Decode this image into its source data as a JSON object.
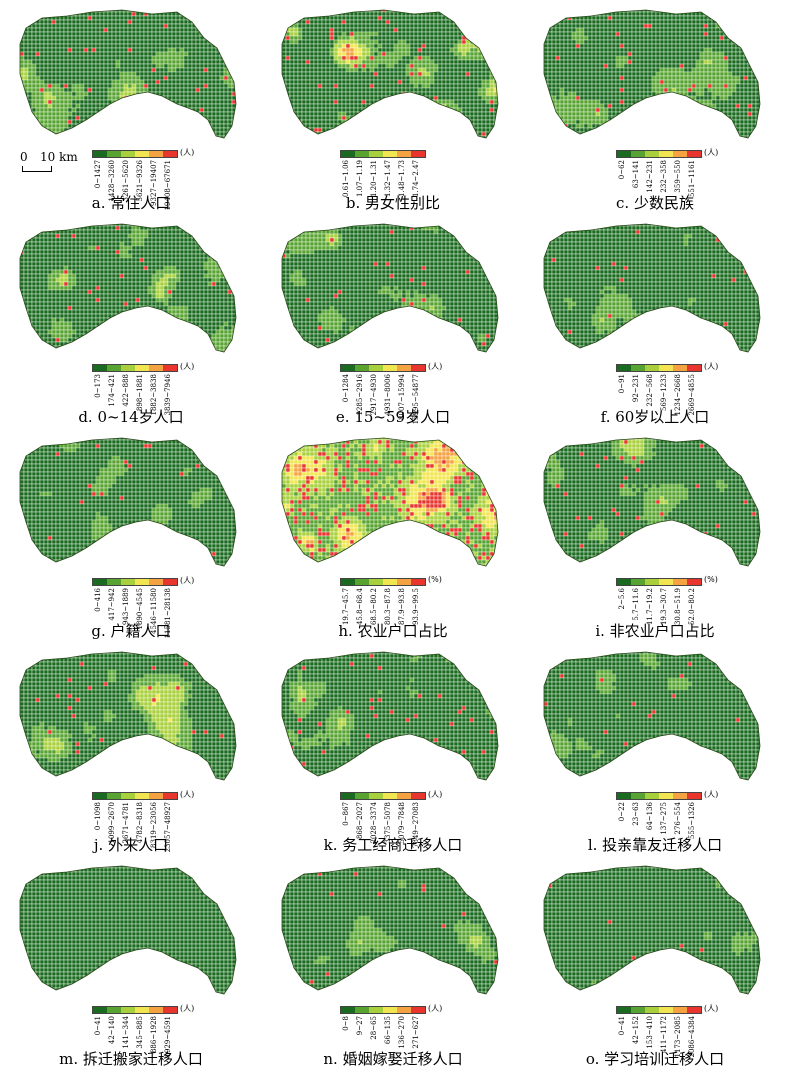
{
  "colors": [
    "#1a6b1f",
    "#58a331",
    "#a8d03c",
    "#f2e552",
    "#f5a242",
    "#e8362f"
  ],
  "scalebar": {
    "zero": "0",
    "distance": "10 km"
  },
  "panels": [
    {
      "caption": "a. 常住人口",
      "unit": "(人)",
      "classes": [
        "0~1427",
        "1428~3260",
        "3261~5620",
        "5621~9326",
        "9327~19407",
        "19408~67671"
      ],
      "level": 0.42,
      "hot": 0.08
    },
    {
      "caption": "b. 男女性别比",
      "unit": "",
      "classes": [
        "0.61~1.06",
        "1.07~1.19",
        "1.20~1.31",
        "1.32~1.47",
        "1.48~1.73",
        "1.74~2.47"
      ],
      "level": 0.62,
      "hot": 0.12
    },
    {
      "caption": "c. 少数民族",
      "unit": "(人)",
      "classes": [
        "0~62",
        "63~141",
        "142~231",
        "232~358",
        "359~550",
        "551~1161"
      ],
      "level": 0.45,
      "hot": 0.1
    },
    {
      "caption": "d. 0~14岁人口",
      "unit": "(人)",
      "classes": [
        "0~173",
        "174~421",
        "422~888",
        "898~1881",
        "1882~3838",
        "3839~7946"
      ],
      "level": 0.4,
      "hot": 0.06
    },
    {
      "caption": "e. 15~59岁人口",
      "unit": "(人)",
      "classes": [
        "0~1284",
        "1285~2916",
        "2917~4930",
        "4931~8006",
        "8007~15994",
        "15995~54877"
      ],
      "level": 0.42,
      "hot": 0.08
    },
    {
      "caption": "f. 60岁以上人口",
      "unit": "(人)",
      "classes": [
        "0~91",
        "92~231",
        "232~568",
        "569~1233",
        "1234~2668",
        "2669~4855"
      ],
      "level": 0.3,
      "hot": 0.03
    },
    {
      "caption": "g. 户籍人口",
      "unit": "(人)",
      "classes": [
        "0~416",
        "417~942",
        "943~1889",
        "1890~4545",
        "4546~11580",
        "11581~28138"
      ],
      "level": 0.33,
      "hot": 0.04
    },
    {
      "caption": "h. 农业户口占比",
      "unit": "(%)",
      "classes": [
        "19.7~45.7",
        "45.8~68.4",
        "68.5~80.2",
        "80.3~87.8",
        "87.9~93.8",
        "93.9~99.5"
      ],
      "level": 0.88,
      "hot": 0.55
    },
    {
      "caption": "i. 非农业户口占比",
      "unit": "(%)",
      "classes": [
        "2~5.6",
        "5.7~11.6",
        "11.7~19.2",
        "19.3~30.7",
        "30.8~51.9",
        "52.0~80.2"
      ],
      "level": 0.36,
      "hot": 0.08
    },
    {
      "caption": "j. 外来人口",
      "unit": "(人)",
      "classes": [
        "0~1098",
        "1099~2670",
        "2671~4781",
        "4782~8318",
        "8319~23056",
        "23057~48927"
      ],
      "level": 0.44,
      "hot": 0.08
    },
    {
      "caption": "k. 务工经商迁移人口",
      "unit": "(人)",
      "classes": [
        "0~867",
        "868~2027",
        "2028~3374",
        "3375~5078",
        "5079~7848",
        "7849~27083"
      ],
      "level": 0.42,
      "hot": 0.08
    },
    {
      "caption": "l. 投亲靠友迁移人口",
      "unit": "(人)",
      "classes": [
        "0~22",
        "23~63",
        "64~136",
        "137~275",
        "276~554",
        "555~1326"
      ],
      "level": 0.3,
      "hot": 0.03
    },
    {
      "caption": "m. 拆迁搬家迁移人口",
      "unit": "(人)",
      "classes": [
        "0~41",
        "42~140",
        "141~344",
        "345~885",
        "886~1928",
        "1929~4591"
      ],
      "level": 0.14,
      "hot": 0.01
    },
    {
      "caption": "n. 婚姻嫁娶迁移人口",
      "unit": "(人)",
      "classes": [
        "0~8",
        "9~27",
        "28~65",
        "66~135",
        "136~270",
        "271~627"
      ],
      "level": 0.28,
      "hot": 0.03
    },
    {
      "caption": "o. 学习培训迁移人口",
      "unit": "(人)",
      "classes": [
        "0~41",
        "42~152",
        "153~410",
        "411~1172",
        "1173~2085",
        "2086~4384"
      ],
      "level": 0.22,
      "hot": 0.02
    }
  ]
}
